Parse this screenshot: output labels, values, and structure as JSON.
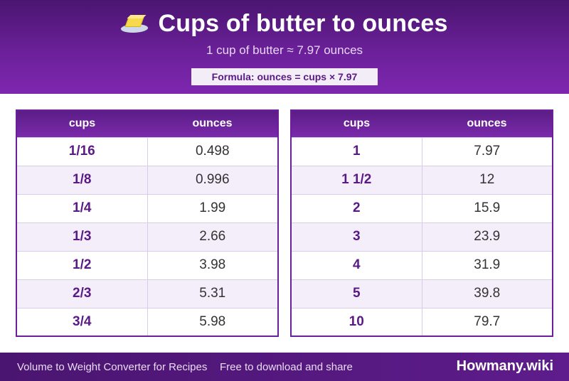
{
  "header": {
    "icon": "butter-icon",
    "title": "Cups of butter to ounces",
    "subtitle": "1 cup of butter ≈ 7.97 ounces",
    "formula": "Formula: ounces = cups × 7.97"
  },
  "tables": [
    {
      "headers": [
        "cups",
        "ounces"
      ],
      "rows": [
        [
          "1/16",
          "0.498"
        ],
        [
          "1/8",
          "0.996"
        ],
        [
          "1/4",
          "1.99"
        ],
        [
          "1/3",
          "2.66"
        ],
        [
          "1/2",
          "3.98"
        ],
        [
          "2/3",
          "5.31"
        ],
        [
          "3/4",
          "5.98"
        ]
      ]
    },
    {
      "headers": [
        "cups",
        "ounces"
      ],
      "rows": [
        [
          "1",
          "7.97"
        ],
        [
          "1 1/2",
          "12"
        ],
        [
          "2",
          "15.9"
        ],
        [
          "3",
          "23.9"
        ],
        [
          "4",
          "31.9"
        ],
        [
          "5",
          "39.8"
        ],
        [
          "10",
          "79.7"
        ]
      ]
    }
  ],
  "footer": {
    "left": "Volume to Weight Converter for Recipes",
    "middle": "Free to download and share",
    "brand": "Howmany.wiki"
  },
  "colors": {
    "primary": "#6b2099",
    "dark": "#4a1570",
    "accent_text": "#5a1a85"
  }
}
